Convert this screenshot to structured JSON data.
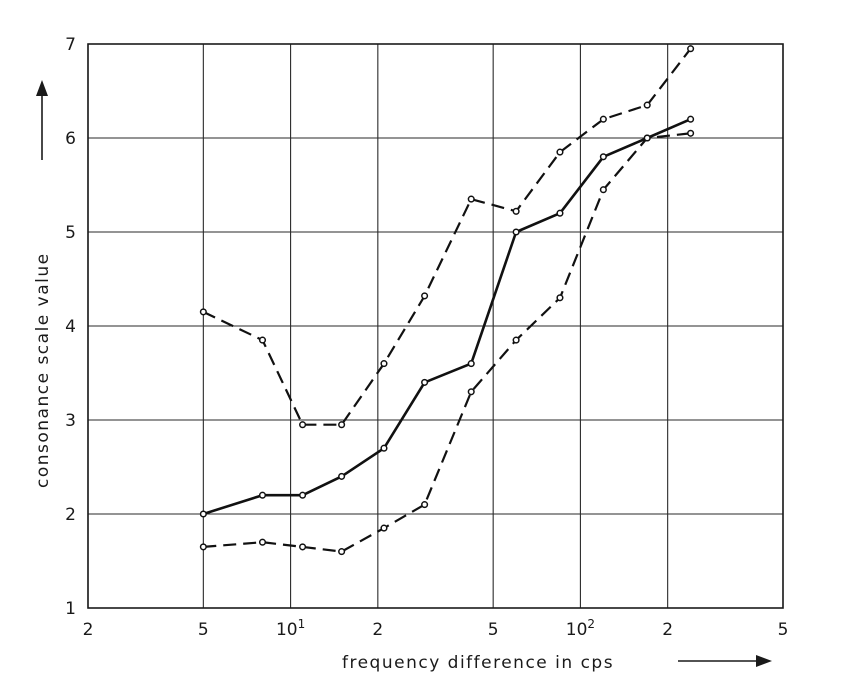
{
  "chart_data": {
    "type": "line",
    "xlabel": "frequency difference in cps",
    "ylabel": "consonance scale value",
    "x_scale": "log",
    "xlim": [
      2,
      500
    ],
    "ylim": [
      1,
      7
    ],
    "grid": true,
    "legend": "none",
    "x_ticks": [
      {
        "value": 2,
        "label": "2"
      },
      {
        "value": 5,
        "label": "5"
      },
      {
        "value": 10,
        "label": "10",
        "base": "10",
        "exp": "1"
      },
      {
        "value": 20,
        "label": "2"
      },
      {
        "value": 50,
        "label": "5"
      },
      {
        "value": 100,
        "label": "10",
        "base": "10",
        "exp": "2"
      },
      {
        "value": 200,
        "label": "2"
      },
      {
        "value": 500,
        "label": "5"
      }
    ],
    "y_ticks": [
      1,
      2,
      3,
      4,
      5,
      6,
      7
    ],
    "series": [
      {
        "style": "dashed",
        "x": [
          5,
          8,
          11,
          15,
          21,
          29,
          42,
          60,
          85,
          120,
          170,
          240
        ],
        "y": [
          4.15,
          3.85,
          2.95,
          2.95,
          3.6,
          4.32,
          5.35,
          5.22,
          5.85,
          6.2,
          6.35,
          6.95
        ]
      },
      {
        "style": "solid",
        "x": [
          5,
          8,
          11,
          15,
          21,
          29,
          42,
          60,
          85,
          120,
          170,
          240
        ],
        "y": [
          2.0,
          2.2,
          2.2,
          2.4,
          2.7,
          3.4,
          3.6,
          5.0,
          5.2,
          5.8,
          6.0,
          6.2
        ]
      },
      {
        "style": "dashed",
        "x": [
          5,
          8,
          11,
          15,
          21,
          29,
          42,
          60,
          85,
          120,
          170,
          240
        ],
        "y": [
          1.65,
          1.7,
          1.65,
          1.6,
          1.85,
          2.1,
          3.3,
          3.85,
          4.3,
          5.45,
          6.0,
          6.05
        ]
      }
    ]
  }
}
